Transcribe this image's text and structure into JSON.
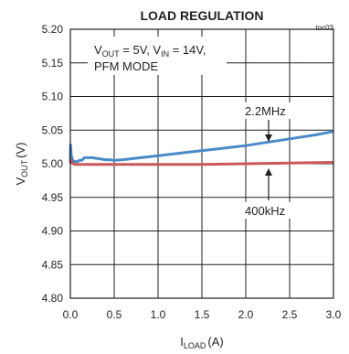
{
  "chart_data": {
    "type": "line",
    "title": "LOAD REGULATION",
    "figure_code": "toc03",
    "xlabel": {
      "main": "I",
      "sub": "LOAD",
      "unit": "(A)"
    },
    "ylabel": {
      "main": "V",
      "sub": "OUT",
      "unit": "(V)"
    },
    "xlim": [
      0,
      3.0
    ],
    "ylim": [
      4.8,
      5.2
    ],
    "x_ticks": [
      "0.0",
      "0.5",
      "1.0",
      "1.5",
      "2.0",
      "2.5",
      "3.0"
    ],
    "y_ticks": [
      "4.80",
      "4.85",
      "4.90",
      "4.95",
      "5.00",
      "5.05",
      "5.10",
      "5.15",
      "5.20"
    ],
    "grid": true,
    "conditions": {
      "line1": {
        "a": "V",
        "a_sub": "OUT",
        "a_val": " = 5V, ",
        "b": "V",
        "b_sub": "IN",
        "b_val": " = 14V,"
      },
      "line2": "PFM MODE"
    },
    "series": [
      {
        "name": "2.2MHz",
        "color": "#4a8ac9",
        "x": [
          0,
          0.002,
          0.01,
          0.03,
          0.06,
          0.08,
          0.1,
          0.13,
          0.16,
          0.2,
          0.25,
          0.3,
          0.35,
          0.4,
          0.45,
          0.5,
          0.6,
          0.8,
          1.0,
          1.2,
          1.4,
          1.6,
          1.8,
          2.0,
          2.2,
          2.4,
          2.6,
          2.8,
          3.0
        ],
        "y": [
          5.001,
          5.028,
          5.012,
          5.004,
          5.003,
          5.003,
          5.005,
          5.005,
          5.009,
          5.009,
          5.009,
          5.008,
          5.007,
          5.006,
          5.006,
          5.005,
          5.006,
          5.009,
          5.012,
          5.015,
          5.018,
          5.021,
          5.024,
          5.027,
          5.031,
          5.035,
          5.039,
          5.043,
          5.048
        ]
      },
      {
        "name": "400kHz",
        "color": "#c8585a",
        "x": [
          0,
          0.005,
          0.02,
          0.05,
          0.1,
          0.2,
          0.5,
          1.0,
          1.5,
          2.0,
          2.5,
          3.0
        ],
        "y": [
          5.002,
          5.006,
          5.001,
          4.999,
          4.999,
          4.999,
          4.999,
          4.999,
          4.999,
          5.0,
          5.001,
          5.002
        ]
      }
    ],
    "annotations": [
      {
        "text": "2.2MHz",
        "series": "2.2MHz"
      },
      {
        "text": "400kHz",
        "series": "400kHz"
      }
    ]
  }
}
